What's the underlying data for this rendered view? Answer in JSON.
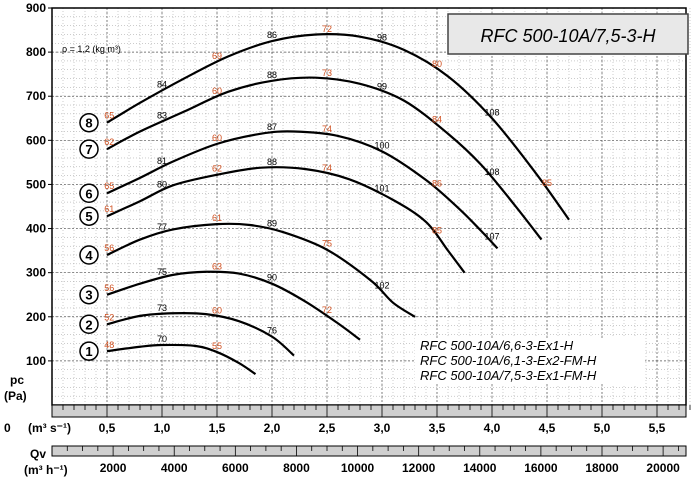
{
  "chart_data": {
    "type": "line",
    "title": "RFC 500-10A/7,5-3-H",
    "density_note": "ρ = 1,2 (kg m³)",
    "ylabel": "pc",
    "ylabel_unit": "(Pa)",
    "xlabel": "Qv",
    "x_unit_top": "(m³ s⁻¹)",
    "x_unit_bottom": "(m³ h⁻¹)",
    "y_ticks": [
      "100",
      "200",
      "300",
      "400",
      "500",
      "600",
      "700",
      "800",
      "900"
    ],
    "x_ticks_ms": [
      "0",
      "0,5",
      "1,0",
      "1,5",
      "2,0",
      "2,5",
      "3,0",
      "3,5",
      "4,0",
      "4,5",
      "5,0",
      "5,5"
    ],
    "x_ticks_mh": [
      "2000",
      "4000",
      "6000",
      "8000",
      "10000",
      "12000",
      "14000",
      "16000",
      "18000",
      "20000"
    ],
    "x_ms_origin_label": "0",
    "xlim": [
      0,
      5.8
    ],
    "ylim": [
      0,
      900
    ],
    "grid": true,
    "legend": [
      "RFC 500-10A/6,6-3-Ex1-H",
      "RFC 500-10A/6,1-3-Ex2-FM-H",
      "RFC 500-10A/7,5-3-Ex1-FM-H"
    ],
    "series": [
      {
        "name": "1",
        "points": [
          [
            0.5,
            122
          ],
          [
            0.8,
            132
          ],
          [
            1.0,
            136
          ],
          [
            1.3,
            134
          ],
          [
            1.5,
            120
          ],
          [
            1.7,
            95
          ],
          [
            1.85,
            70
          ]
        ],
        "eff": [
          [
            0.52,
            "48",
            "#d05020"
          ],
          [
            1.0,
            "70",
            "#000"
          ],
          [
            1.5,
            "55",
            "#d05020"
          ]
        ]
      },
      {
        "name": "2",
        "points": [
          [
            0.5,
            183
          ],
          [
            0.8,
            202
          ],
          [
            1.1,
            208
          ],
          [
            1.4,
            206
          ],
          [
            1.7,
            190
          ],
          [
            2.0,
            155
          ],
          [
            2.2,
            112
          ]
        ],
        "eff": [
          [
            0.52,
            "52",
            "#d05020"
          ],
          [
            1.0,
            "73",
            "#000"
          ],
          [
            1.5,
            "60",
            "#d05020"
          ],
          [
            2.0,
            "76",
            "#000"
          ]
        ]
      },
      {
        "name": "3",
        "points": [
          [
            0.5,
            250
          ],
          [
            0.8,
            275
          ],
          [
            1.1,
            295
          ],
          [
            1.4,
            302
          ],
          [
            1.7,
            298
          ],
          [
            2.0,
            275
          ],
          [
            2.3,
            235
          ],
          [
            2.6,
            185
          ],
          [
            2.8,
            148
          ]
        ],
        "eff": [
          [
            0.52,
            "56",
            "#d05020"
          ],
          [
            1.0,
            "75",
            "#000"
          ],
          [
            1.5,
            "63",
            "#d05020"
          ],
          [
            2.0,
            "90",
            "#000"
          ],
          [
            2.5,
            "72",
            "#d05020"
          ]
        ]
      },
      {
        "name": "4",
        "points": [
          [
            0.5,
            340
          ],
          [
            0.8,
            375
          ],
          [
            1.1,
            398
          ],
          [
            1.5,
            410
          ],
          [
            1.8,
            408
          ],
          [
            2.1,
            392
          ],
          [
            2.5,
            352
          ],
          [
            2.9,
            282
          ],
          [
            3.1,
            232
          ],
          [
            3.3,
            200
          ]
        ],
        "eff": [
          [
            0.52,
            "56",
            "#d05020"
          ],
          [
            1.0,
            "77",
            "#000"
          ],
          [
            1.5,
            "61",
            "#d05020"
          ],
          [
            2.0,
            "89",
            "#000"
          ],
          [
            2.5,
            "75",
            "#d05020"
          ],
          [
            3.0,
            "102",
            "#000"
          ]
        ]
      },
      {
        "name": "5",
        "points": [
          [
            0.5,
            428
          ],
          [
            0.8,
            462
          ],
          [
            1.1,
            498
          ],
          [
            1.5,
            522
          ],
          [
            1.9,
            538
          ],
          [
            2.3,
            535
          ],
          [
            2.7,
            512
          ],
          [
            3.1,
            465
          ],
          [
            3.4,
            415
          ],
          [
            3.6,
            350
          ],
          [
            3.75,
            300
          ]
        ],
        "eff": [
          [
            0.52,
            "61",
            "#d05020"
          ],
          [
            1.0,
            "80",
            "#000"
          ],
          [
            1.5,
            "62",
            "#d05020"
          ],
          [
            2.0,
            "88",
            "#000"
          ],
          [
            2.5,
            "74",
            "#d05020"
          ],
          [
            3.0,
            "101",
            "#000"
          ],
          [
            3.5,
            "85",
            "#d05020"
          ]
        ]
      },
      {
        "name": "6",
        "points": [
          [
            0.5,
            480
          ],
          [
            0.8,
            515
          ],
          [
            1.1,
            552
          ],
          [
            1.5,
            592
          ],
          [
            1.9,
            615
          ],
          [
            2.2,
            620
          ],
          [
            2.6,
            610
          ],
          [
            3.0,
            575
          ],
          [
            3.4,
            510
          ],
          [
            3.7,
            445
          ],
          [
            3.9,
            395
          ],
          [
            4.05,
            355
          ]
        ],
        "eff": [
          [
            0.52,
            "65",
            "#d05020"
          ],
          [
            1.0,
            "81",
            "#000"
          ],
          [
            1.5,
            "60",
            "#d05020"
          ],
          [
            2.0,
            "87",
            "#000"
          ],
          [
            2.5,
            "74",
            "#d05020"
          ],
          [
            3.0,
            "100",
            "#000"
          ],
          [
            3.5,
            "86",
            "#d05020"
          ],
          [
            4.0,
            "107",
            "#000"
          ]
        ]
      },
      {
        "name": "7",
        "points": [
          [
            0.5,
            580
          ],
          [
            0.8,
            620
          ],
          [
            1.2,
            665
          ],
          [
            1.6,
            710
          ],
          [
            2.0,
            735
          ],
          [
            2.4,
            742
          ],
          [
            2.8,
            728
          ],
          [
            3.2,
            690
          ],
          [
            3.6,
            615
          ],
          [
            3.9,
            545
          ],
          [
            4.2,
            455
          ],
          [
            4.45,
            375
          ]
        ],
        "eff": [
          [
            0.52,
            "62",
            "#d05020"
          ],
          [
            1.0,
            "83",
            "#000"
          ],
          [
            1.5,
            "60",
            "#d05020"
          ],
          [
            2.0,
            "88",
            "#000"
          ],
          [
            2.5,
            "73",
            "#d05020"
          ],
          [
            3.0,
            "99",
            "#000"
          ],
          [
            3.5,
            "84",
            "#d05020"
          ],
          [
            4.0,
            "108",
            "#000"
          ]
        ]
      },
      {
        "name": "8",
        "points": [
          [
            0.5,
            640
          ],
          [
            0.8,
            685
          ],
          [
            1.2,
            740
          ],
          [
            1.6,
            790
          ],
          [
            2.0,
            825
          ],
          [
            2.4,
            840
          ],
          [
            2.8,
            835
          ],
          [
            3.2,
            805
          ],
          [
            3.6,
            745
          ],
          [
            4.0,
            650
          ],
          [
            4.4,
            525
          ],
          [
            4.7,
            420
          ]
        ],
        "eff": [
          [
            0.52,
            "65",
            "#d05020"
          ],
          [
            1.0,
            "84",
            "#000"
          ],
          [
            1.5,
            "69",
            "#d05020"
          ],
          [
            2.0,
            "86",
            "#000"
          ],
          [
            2.5,
            "72",
            "#d05020"
          ],
          [
            3.0,
            "98",
            "#000"
          ],
          [
            3.5,
            "80",
            "#d05020"
          ],
          [
            4.0,
            "108",
            "#000"
          ],
          [
            4.5,
            "85",
            "#d05020"
          ]
        ]
      }
    ]
  }
}
